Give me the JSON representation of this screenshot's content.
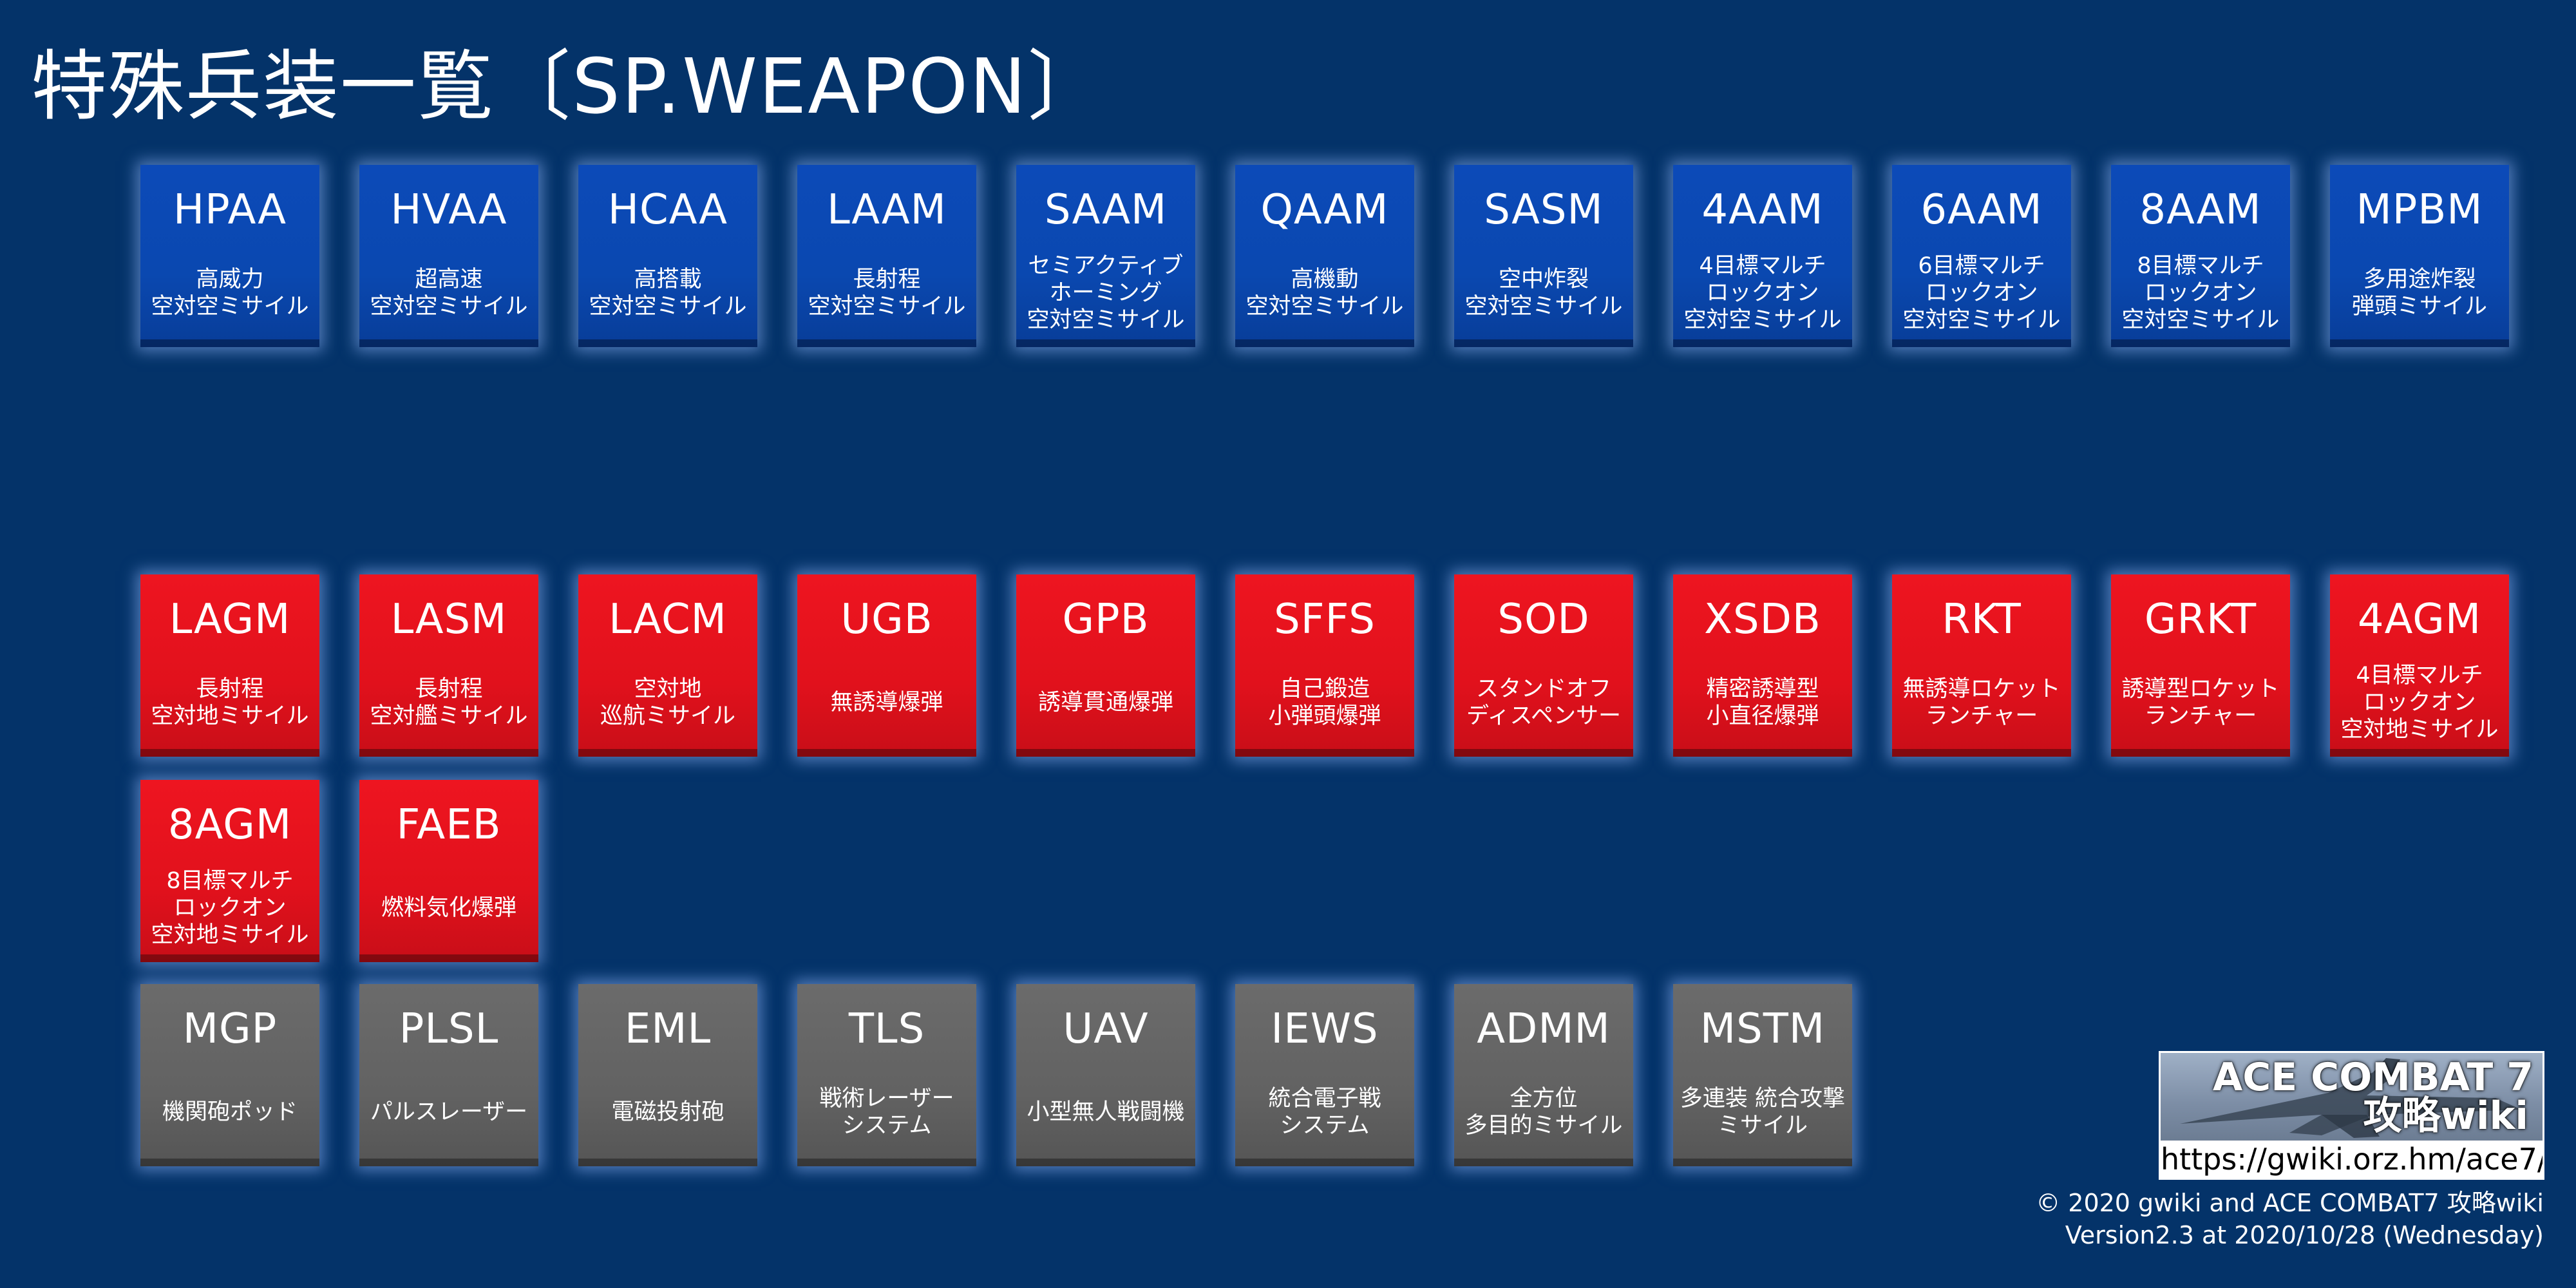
{
  "page": {
    "title": "特殊兵装一覧〔SP.WEAPON〕",
    "colors": {
      "background": "#043369",
      "air": "#0a48b0",
      "ground": "#e1111c",
      "other": "#626262"
    }
  },
  "weapons": [
    {
      "code": "HPAA",
      "desc": "高威力\n空対空ミサイル",
      "category": "blue"
    },
    {
      "code": "HVAA",
      "desc": "超高速\n空対空ミサイル",
      "category": "blue"
    },
    {
      "code": "HCAA",
      "desc": "高搭載\n空対空ミサイル",
      "category": "blue"
    },
    {
      "code": "LAAM",
      "desc": "長射程\n空対空ミサイル",
      "category": "blue"
    },
    {
      "code": "SAAM",
      "desc": "セミアクティブ\nホーミング\n空対空ミサイル",
      "category": "blue"
    },
    {
      "code": "QAAM",
      "desc": "高機動\n空対空ミサイル",
      "category": "blue"
    },
    {
      "code": "SASM",
      "desc": "空中炸裂\n空対空ミサイル",
      "category": "blue"
    },
    {
      "code": "4AAM",
      "desc": "4目標マルチ\nロックオン\n空対空ミサイル",
      "category": "blue"
    },
    {
      "code": "6AAM",
      "desc": "6目標マルチ\nロックオン\n空対空ミサイル",
      "category": "blue"
    },
    {
      "code": "8AAM",
      "desc": "8目標マルチ\nロックオン\n空対空ミサイル",
      "category": "blue"
    },
    {
      "code": "MPBM",
      "desc": "多用途炸裂\n弾頭ミサイル",
      "category": "blue"
    },
    {
      "code": "LAGM",
      "desc": "長射程\n空対地ミサイル",
      "category": "red"
    },
    {
      "code": "LASM",
      "desc": "長射程\n空対艦ミサイル",
      "category": "red"
    },
    {
      "code": "LACM",
      "desc": "空対地\n巡航ミサイル",
      "category": "red"
    },
    {
      "code": "UGB",
      "desc": "無誘導爆弾",
      "category": "red"
    },
    {
      "code": "GPB",
      "desc": "誘導貫通爆弾",
      "category": "red"
    },
    {
      "code": "SFFS",
      "desc": "自己鍛造\n小弾頭爆弾",
      "category": "red"
    },
    {
      "code": "SOD",
      "desc": "スタンドオフ\nディスペンサー",
      "category": "red"
    },
    {
      "code": "XSDB",
      "desc": "精密誘導型\n小直径爆弾",
      "category": "red"
    },
    {
      "code": "RKT",
      "desc": "無誘導ロケット\nランチャー",
      "category": "red"
    },
    {
      "code": "GRKT",
      "desc": "誘導型ロケット\nランチャー",
      "category": "red"
    },
    {
      "code": "4AGM",
      "desc": "4目標マルチ\nロックオン\n空対地ミサイル",
      "category": "red"
    },
    {
      "code": "8AGM",
      "desc": "8目標マルチ\nロックオン\n空対地ミサイル",
      "category": "red"
    },
    {
      "code": "FAEB",
      "desc": "燃料気化爆弾",
      "category": "red"
    },
    {
      "code": "MGP",
      "desc": "機関砲ポッド",
      "category": "gray"
    },
    {
      "code": "PLSL",
      "desc": "パルスレーザー",
      "category": "gray"
    },
    {
      "code": "EML",
      "desc": "電磁投射砲",
      "category": "gray"
    },
    {
      "code": "TLS",
      "desc": "戦術レーザー\nシステム",
      "category": "gray"
    },
    {
      "code": "UAV",
      "desc": "小型無人戦闘機",
      "category": "gray"
    },
    {
      "code": "IEWS",
      "desc": "統合電子戦\nシステム",
      "category": "gray"
    },
    {
      "code": "ADMM",
      "desc": "全方位\n多目的ミサイル",
      "category": "gray"
    },
    {
      "code": "MSTM",
      "desc": "多連装 統合攻撃\nミサイル",
      "category": "gray"
    }
  ],
  "logo": {
    "title": "ACE COMBAT 7",
    "subtitle": "攻略wiki",
    "url": "https://gwiki.orz.hm/ace7/"
  },
  "footer": {
    "copyright": "© 2020 gwiki and ACE COMBAT7 攻略wiki",
    "version": "Version2.3 at 2020/10/28 (Wednesday)"
  }
}
